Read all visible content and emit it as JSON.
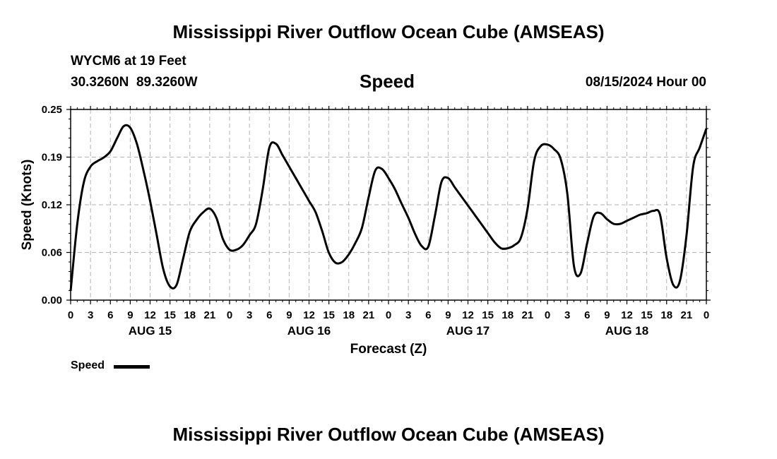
{
  "header": {
    "title_top": "Mississippi River Outflow Ocean Cube (AMSEAS)",
    "station": "WYCM6 at 19 Feet",
    "coords": "30.3260N  89.3260W",
    "variable": "Speed",
    "datetime": "08/15/2024 Hour 00",
    "title_bottom": "Mississippi River Outflow Ocean Cube (AMSEAS)"
  },
  "legend": {
    "label": "Speed",
    "color": "#000000"
  },
  "chart_data": {
    "type": "line",
    "title": "Speed",
    "xlabel": "Forecast (Z)",
    "ylabel": "Speed (Knots)",
    "ylim": [
      0,
      0.25
    ],
    "yticks": [
      "0.00",
      "0.06",
      "0.12",
      "0.19",
      "0.25"
    ],
    "ytick_values": [
      0,
      0.0625,
      0.125,
      0.1875,
      0.25
    ],
    "xlim": [
      0,
      96
    ],
    "xticks": [
      "0",
      "3",
      "6",
      "9",
      "12",
      "15",
      "18",
      "21",
      "0",
      "3",
      "6",
      "9",
      "12",
      "15",
      "18",
      "21",
      "0",
      "3",
      "6",
      "9",
      "12",
      "15",
      "18",
      "21",
      "0",
      "3",
      "6",
      "9",
      "12",
      "15",
      "18",
      "21",
      "0"
    ],
    "date_labels": [
      {
        "label": "AUG 15",
        "hour": 12
      },
      {
        "label": "AUG 16",
        "hour": 36
      },
      {
        "label": "AUG 17",
        "hour": 60
      },
      {
        "label": "AUG 18",
        "hour": 84
      }
    ],
    "grid": true,
    "series": [
      {
        "name": "Speed",
        "color": "#000000",
        "x": [
          0,
          1,
          2,
          3,
          4,
          5,
          6,
          7,
          8,
          9,
          10,
          11,
          12,
          13,
          14,
          15,
          16,
          17,
          18,
          19,
          20,
          21,
          22,
          23,
          24,
          25,
          26,
          27,
          28,
          29,
          30,
          31,
          32,
          33,
          34,
          35,
          36,
          37,
          38,
          39,
          40,
          41,
          42,
          43,
          44,
          45,
          46,
          47,
          48,
          49,
          50,
          51,
          52,
          53,
          54,
          55,
          56,
          57,
          58,
          59,
          60,
          61,
          62,
          63,
          64,
          65,
          66,
          67,
          68,
          69,
          70,
          71,
          72,
          73,
          74,
          75,
          76,
          77,
          78,
          79,
          80,
          81,
          82,
          83,
          84,
          85,
          86,
          87,
          88,
          89,
          90,
          91,
          92,
          93,
          94,
          95,
          96
        ],
        "y": [
          0.012,
          0.1,
          0.155,
          0.175,
          0.182,
          0.187,
          0.195,
          0.212,
          0.228,
          0.226,
          0.205,
          0.17,
          0.13,
          0.085,
          0.04,
          0.018,
          0.02,
          0.055,
          0.09,
          0.105,
          0.115,
          0.12,
          0.108,
          0.08,
          0.066,
          0.066,
          0.072,
          0.085,
          0.1,
          0.145,
          0.2,
          0.205,
          0.19,
          0.175,
          0.16,
          0.145,
          0.13,
          0.115,
          0.09,
          0.062,
          0.049,
          0.05,
          0.06,
          0.075,
          0.095,
          0.135,
          0.17,
          0.172,
          0.16,
          0.145,
          0.126,
          0.108,
          0.087,
          0.071,
          0.07,
          0.11,
          0.155,
          0.16,
          0.148,
          0.136,
          0.124,
          0.112,
          0.1,
          0.088,
          0.076,
          0.068,
          0.068,
          0.072,
          0.082,
          0.12,
          0.183,
          0.202,
          0.204,
          0.198,
          0.185,
          0.14,
          0.045,
          0.035,
          0.075,
          0.11,
          0.114,
          0.106,
          0.1,
          0.1,
          0.104,
          0.108,
          0.112,
          0.114,
          0.117,
          0.112,
          0.055,
          0.02,
          0.025,
          0.085,
          0.175,
          0.2,
          0.225
        ]
      }
    ]
  }
}
